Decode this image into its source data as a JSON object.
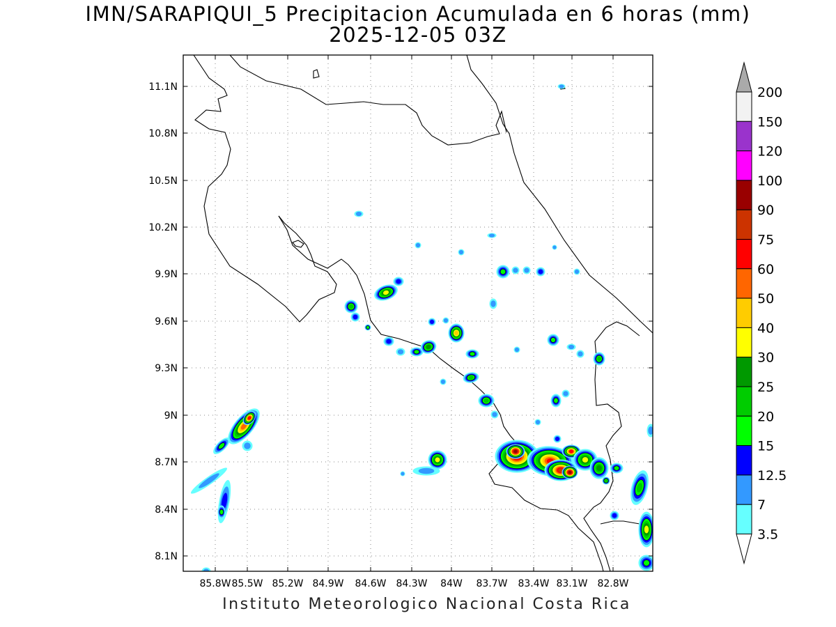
{
  "title": {
    "line1": "IMN/SARAPIQUI_5 Precipitacion Acumulada en 6 horas (mm)",
    "line2": "2025-12-05 03Z"
  },
  "footer": "Instituto Meteorologico Nacional Costa Rica",
  "map": {
    "lon_range": [
      -86.0,
      -82.5
    ],
    "lat_range": [
      8.0,
      11.3
    ],
    "x_ticks": [
      "85.8W",
      "85.5W",
      "85.2W",
      "84.9W",
      "84.6W",
      "84.3W",
      "84W",
      "83.7W",
      "83.4W",
      "83.1W",
      "82.8W"
    ],
    "y_ticks": [
      "11.1N",
      "10.8N",
      "10.5N",
      "10.2N",
      "9.9N",
      "9.6N",
      "9.3N",
      "9N",
      "8.7N",
      "8.4N",
      "8.1N"
    ],
    "grid": true
  },
  "colorbar": {
    "labels": [
      "200",
      "150",
      "120",
      "100",
      "90",
      "75",
      "60",
      "50",
      "40",
      "30",
      "25",
      "20",
      "15",
      "12.5",
      "7",
      "3.5"
    ],
    "colors": [
      "#f2f2f2",
      "#9a33cc",
      "#ff00ff",
      "#990000",
      "#cc3300",
      "#ff0000",
      "#ff6600",
      "#ffcc00",
      "#ffff00",
      "#009900",
      "#00cc00",
      "#00ff00",
      "#0000ff",
      "#3399ff",
      "#66ffff"
    ],
    "over_color": "#aaaaaa",
    "under_color": "#ffffff"
  }
}
